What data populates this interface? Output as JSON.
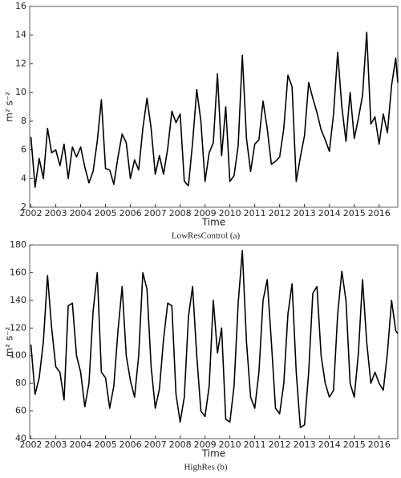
{
  "chart_data": [
    {
      "type": "line",
      "caption": "LowResControl (a)",
      "x_label": "Time",
      "y_label": "m² s⁻²",
      "x": [
        2002,
        2002.167,
        2002.333,
        2002.5,
        2002.667,
        2002.833,
        2003,
        2003.167,
        2003.333,
        2003.5,
        2003.667,
        2003.833,
        2004,
        2004.167,
        2004.333,
        2004.5,
        2004.667,
        2004.833,
        2005,
        2005.167,
        2005.333,
        2005.5,
        2005.667,
        2005.833,
        2006,
        2006.167,
        2006.333,
        2006.5,
        2006.667,
        2006.833,
        2007,
        2007.167,
        2007.333,
        2007.5,
        2007.667,
        2007.833,
        2008,
        2008.167,
        2008.333,
        2008.5,
        2008.667,
        2008.833,
        2009,
        2009.167,
        2009.333,
        2009.5,
        2009.667,
        2009.833,
        2010,
        2010.167,
        2010.333,
        2010.5,
        2010.667,
        2010.833,
        2011,
        2011.167,
        2011.333,
        2011.5,
        2011.667,
        2011.833,
        2012,
        2012.167,
        2012.333,
        2012.5,
        2012.667,
        2012.833,
        2013,
        2013.167,
        2013.333,
        2013.5,
        2013.667,
        2013.833,
        2014,
        2014.167,
        2014.333,
        2014.5,
        2014.667,
        2014.833,
        2015,
        2015.167,
        2015.333,
        2015.5,
        2015.667,
        2015.833,
        2016,
        2016.167,
        2016.333,
        2016.5,
        2016.667,
        2016.75
      ],
      "series": [
        {
          "color": "#000000",
          "values": [
            6.9,
            3.4,
            5.4,
            4.0,
            7.5,
            5.8,
            6.0,
            4.9,
            6.4,
            4.0,
            6.2,
            5.5,
            6.2,
            4.8,
            3.7,
            4.5,
            6.6,
            9.5,
            4.7,
            4.6,
            3.6,
            5.5,
            7.1,
            6.5,
            4.0,
            5.3,
            4.6,
            7.5,
            9.6,
            7.5,
            4.3,
            5.6,
            4.3,
            6.1,
            8.7,
            7.9,
            8.5,
            3.8,
            3.5,
            6.5,
            10.2,
            8.0,
            3.8,
            5.8,
            6.5,
            11.3,
            5.6,
            9.0,
            3.8,
            4.2,
            6.3,
            12.6,
            6.8,
            4.5,
            6.4,
            6.7,
            9.4,
            7.5,
            5.0,
            5.2,
            5.5,
            7.5,
            11.2,
            10.4,
            3.8,
            5.5,
            7.0,
            10.7,
            9.6,
            8.6,
            7.4,
            6.7,
            5.9,
            8.5,
            12.8,
            9.0,
            6.6,
            10.0,
            6.8,
            8.2,
            9.8,
            14.2,
            7.8,
            8.3,
            6.4,
            8.5,
            7.2,
            10.5,
            12.4,
            10.7
          ]
        }
      ],
      "xlim": [
        2001.95,
        2016.75
      ],
      "xticks": [
        2002,
        2003,
        2004,
        2005,
        2006,
        2007,
        2008,
        2009,
        2010,
        2011,
        2012,
        2013,
        2014,
        2015,
        2016
      ],
      "ylim": [
        2,
        16
      ],
      "yticks": [
        2,
        4,
        6,
        8,
        10,
        12,
        14,
        16
      ]
    },
    {
      "type": "line",
      "caption": "HighRes (b)",
      "x_label": "Time",
      "y_label": "m² s⁻²",
      "x": [
        2002,
        2002.167,
        2002.333,
        2002.5,
        2002.667,
        2002.833,
        2003,
        2003.167,
        2003.333,
        2003.5,
        2003.667,
        2003.833,
        2004,
        2004.167,
        2004.333,
        2004.5,
        2004.667,
        2004.833,
        2005,
        2005.167,
        2005.333,
        2005.5,
        2005.667,
        2005.833,
        2006,
        2006.167,
        2006.333,
        2006.5,
        2006.667,
        2006.833,
        2007,
        2007.167,
        2007.333,
        2007.5,
        2007.667,
        2007.833,
        2008,
        2008.167,
        2008.333,
        2008.5,
        2008.667,
        2008.833,
        2009,
        2009.167,
        2009.333,
        2009.5,
        2009.667,
        2009.833,
        2010,
        2010.167,
        2010.333,
        2010.5,
        2010.667,
        2010.833,
        2011,
        2011.167,
        2011.333,
        2011.5,
        2011.667,
        2011.833,
        2012,
        2012.167,
        2012.333,
        2012.5,
        2012.667,
        2012.833,
        2013,
        2013.167,
        2013.333,
        2013.5,
        2013.667,
        2013.833,
        2014,
        2014.167,
        2014.333,
        2014.5,
        2014.667,
        2014.833,
        2015,
        2015.167,
        2015.333,
        2015.5,
        2015.667,
        2015.833,
        2016,
        2016.167,
        2016.333,
        2016.5,
        2016.667,
        2016.75
      ],
      "series": [
        {
          "color": "#000000",
          "values": [
            108,
            72,
            84,
            110,
            158,
            120,
            92,
            88,
            68,
            136,
            138,
            100,
            88,
            63,
            80,
            132,
            160,
            88,
            84,
            62,
            78,
            118,
            150,
            100,
            82,
            70,
            100,
            160,
            148,
            92,
            62,
            76,
            112,
            138,
            136,
            72,
            52,
            70,
            128,
            150,
            100,
            60,
            56,
            78,
            140,
            102,
            120,
            54,
            52,
            78,
            138,
            176,
            110,
            70,
            62,
            88,
            140,
            155,
            110,
            62,
            58,
            80,
            130,
            152,
            88,
            48,
            50,
            88,
            145,
            150,
            100,
            80,
            70,
            75,
            130,
            161,
            140,
            80,
            70,
            102,
            155,
            110,
            80,
            88,
            80,
            75,
            102,
            140,
            118,
            116
          ]
        }
      ],
      "xlim": [
        2001.95,
        2016.75
      ],
      "xticks": [
        2002,
        2003,
        2004,
        2005,
        2006,
        2007,
        2008,
        2009,
        2010,
        2011,
        2012,
        2013,
        2014,
        2015,
        2016
      ],
      "ylim": [
        40,
        180
      ],
      "yticks": [
        40,
        60,
        80,
        100,
        120,
        140,
        160,
        180
      ]
    }
  ]
}
